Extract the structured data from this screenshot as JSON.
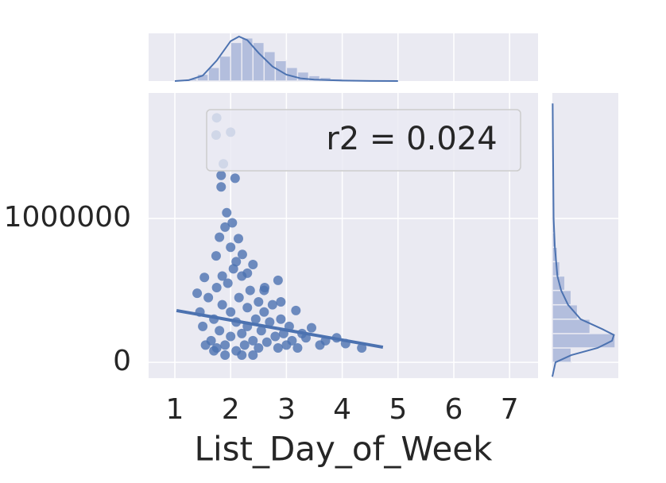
{
  "chart_data": {
    "type": "scatter",
    "x_label": "List_Day_of_Week",
    "annotation": "r2 = 0.024",
    "color": "#4c72b0",
    "grid": true,
    "xlim": [
      0.53,
      7.51
    ],
    "ylim": [
      -110000,
      1873000
    ],
    "xticks": [
      1,
      2,
      3,
      4,
      5,
      6,
      7
    ],
    "yticks": [
      0,
      1000000
    ],
    "x": [
      1.75,
      1.74,
      2.0,
      1.87,
      1.83,
      2.08,
      1.83,
      1.93,
      2.03,
      1.8,
      2.14,
      1.9,
      2.21,
      2.4,
      2.85,
      1.74,
      1.53,
      1.4,
      2.61,
      3.17,
      3.45,
      3.7,
      4.35,
      4.06,
      3.28,
      1.65,
      1.7,
      1.75,
      1.8,
      1.85,
      1.9,
      1.95,
      2.0,
      2.0,
      2.05,
      2.1,
      2.1,
      2.15,
      2.2,
      2.2,
      2.25,
      2.3,
      2.3,
      2.35,
      2.4,
      2.45,
      2.5,
      2.5,
      2.55,
      2.6,
      2.65,
      2.7,
      2.75,
      2.8,
      2.85,
      2.9,
      2.95,
      3.0,
      3.05,
      3.1,
      3.2,
      3.35,
      1.5,
      1.55,
      1.45,
      1.6,
      1.85,
      2.0,
      2.1,
      2.3,
      1.75,
      2.6,
      2.9,
      3.6,
      3.9,
      1.9,
      2.4,
      2.2,
      1.7
    ],
    "y": [
      1700000,
      1580000,
      1600000,
      1380000,
      1300000,
      1280000,
      1220000,
      1040000,
      970000,
      870000,
      860000,
      940000,
      750000,
      680000,
      570000,
      740000,
      590000,
      480000,
      520000,
      360000,
      240000,
      150000,
      100000,
      130000,
      200000,
      150000,
      300000,
      100000,
      220000,
      400000,
      120000,
      550000,
      180000,
      350000,
      650000,
      80000,
      280000,
      450000,
      200000,
      600000,
      120000,
      380000,
      250000,
      500000,
      150000,
      300000,
      100000,
      420000,
      220000,
      350000,
      140000,
      280000,
      400000,
      180000,
      100000,
      300000,
      200000,
      120000,
      250000,
      150000,
      100000,
      170000,
      250000,
      120000,
      350000,
      450000,
      600000,
      800000,
      700000,
      620000,
      520000,
      500000,
      420000,
      120000,
      170000,
      50000,
      50000,
      50000,
      80000
    ],
    "regression": {
      "x": [
        1.03,
        4.73
      ],
      "y": [
        360000,
        105000
      ]
    },
    "marginal_x": {
      "lim": [
        0,
        1.05
      ],
      "bins": [
        1.2,
        1.4,
        1.6,
        1.8,
        2.0,
        2.2,
        2.4,
        2.6,
        2.8,
        3.0,
        3.2,
        3.4,
        3.6,
        3.8,
        4.0,
        4.2,
        4.4,
        4.6,
        4.8
      ],
      "counts": [
        0.05,
        0.15,
        0.3,
        0.55,
        0.85,
        0.95,
        0.85,
        0.65,
        0.45,
        0.3,
        0.2,
        0.12,
        0.08,
        0.05,
        0.03,
        0.02,
        0.01,
        0.01
      ],
      "kde_x": [
        1.0,
        1.25,
        1.5,
        1.75,
        2.0,
        2.15,
        2.3,
        2.5,
        2.75,
        3.0,
        3.25,
        3.5,
        4.0,
        4.5,
        5.0
      ],
      "kde_y": [
        0,
        0.02,
        0.12,
        0.45,
        0.88,
        0.98,
        0.9,
        0.62,
        0.32,
        0.14,
        0.06,
        0.03,
        0.01,
        0.003,
        0
      ]
    },
    "marginal_y": {
      "lim": [
        0,
        1.05
      ],
      "bins": [
        0,
        100000,
        200000,
        300000,
        400000,
        500000,
        600000,
        700000,
        800000,
        900000,
        1000000,
        1100000,
        1200000,
        1300000,
        1400000,
        1500000,
        1600000,
        1700000,
        1800000
      ],
      "counts": [
        0.3,
        1.0,
        0.6,
        0.4,
        0.3,
        0.2,
        0.12,
        0.08,
        0.05,
        0.04,
        0.03,
        0.02,
        0.02,
        0.01,
        0.01,
        0.01,
        0.01,
        0.01
      ],
      "kde_x": [
        -100000,
        0,
        50000,
        100000,
        150000,
        190000,
        230000,
        300000,
        400000,
        500000,
        600000,
        800000,
        1000000,
        1500000,
        1800000
      ],
      "kde_y": [
        0,
        0.05,
        0.3,
        0.72,
        0.95,
        0.98,
        0.8,
        0.45,
        0.25,
        0.14,
        0.08,
        0.04,
        0.02,
        0.01,
        0.005
      ]
    }
  }
}
